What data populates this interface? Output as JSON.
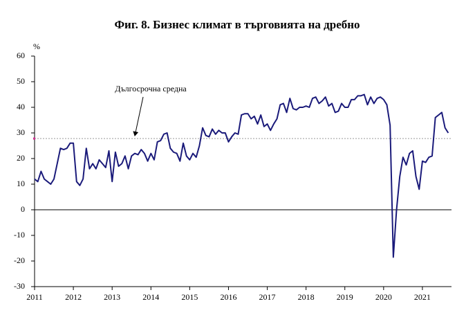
{
  "chart_data": {
    "type": "line",
    "title": "Фиг. 8. Бизнес климат в търговията на дребно",
    "y_unit": "%",
    "annotation": "Дългосрочна средна",
    "average": 27.8,
    "average_color": "#999999",
    "color": "#1a1a7a",
    "categories": [
      "2011",
      null,
      null,
      null,
      null,
      null,
      null,
      null,
      null,
      null,
      null,
      null,
      "2012",
      null,
      null,
      null,
      null,
      null,
      null,
      null,
      null,
      null,
      null,
      null,
      "2013",
      null,
      null,
      null,
      null,
      null,
      null,
      null,
      null,
      null,
      null,
      null,
      "2014",
      null,
      null,
      null,
      null,
      null,
      null,
      null,
      null,
      null,
      null,
      null,
      "2015",
      null,
      null,
      null,
      null,
      null,
      null,
      null,
      null,
      null,
      null,
      null,
      "2016",
      null,
      null,
      null,
      null,
      null,
      null,
      null,
      null,
      null,
      null,
      null,
      "2017",
      null,
      null,
      null,
      null,
      null,
      null,
      null,
      null,
      null,
      null,
      null,
      "2018",
      null,
      null,
      null,
      null,
      null,
      null,
      null,
      null,
      null,
      null,
      null,
      "2019",
      null,
      null,
      null,
      null,
      null,
      null,
      null,
      null,
      null,
      null,
      null,
      "2020",
      null,
      null,
      null,
      null,
      null,
      null,
      null,
      null,
      null,
      null,
      null,
      "2021",
      null,
      null,
      null,
      null,
      null,
      null,
      null,
      null
    ],
    "values": [
      12,
      11,
      15,
      12,
      11,
      10,
      12,
      18,
      24,
      23.5,
      24,
      26,
      26,
      11,
      9.5,
      12,
      24,
      16,
      18,
      16,
      19.5,
      18,
      16.5,
      23,
      11,
      22.5,
      17,
      18,
      21,
      16,
      21,
      22,
      21.5,
      23.5,
      22,
      19,
      22,
      19.5,
      26.5,
      27,
      29.5,
      30,
      24,
      22.5,
      22,
      19,
      26,
      21,
      19.5,
      22,
      20.5,
      25,
      32,
      29,
      28.5,
      31.5,
      29.5,
      31,
      30,
      30,
      26.5,
      28.5,
      30,
      29.5,
      37,
      37.5,
      37.5,
      35.5,
      36.5,
      33.5,
      37,
      32.5,
      33.5,
      31,
      33.5,
      35.5,
      41,
      41.5,
      38,
      43.5,
      39.5,
      39,
      40,
      40,
      40.5,
      40,
      43.5,
      44,
      41.5,
      42.5,
      44,
      40.5,
      41.5,
      38,
      38.5,
      41.5,
      40,
      40,
      43,
      43,
      44.5,
      44.5,
      45,
      41,
      44,
      41.5,
      43.5,
      44,
      43,
      41,
      33,
      -18.5,
      0,
      13,
      20.5,
      17.5,
      22,
      23,
      13,
      8,
      19,
      18.5,
      20.5,
      21,
      36,
      37,
      38,
      32,
      30
    ],
    "ylim": [
      -30,
      60
    ],
    "yticks": [
      -30,
      -20,
      -10,
      0,
      10,
      20,
      30,
      40,
      50,
      60
    ]
  }
}
